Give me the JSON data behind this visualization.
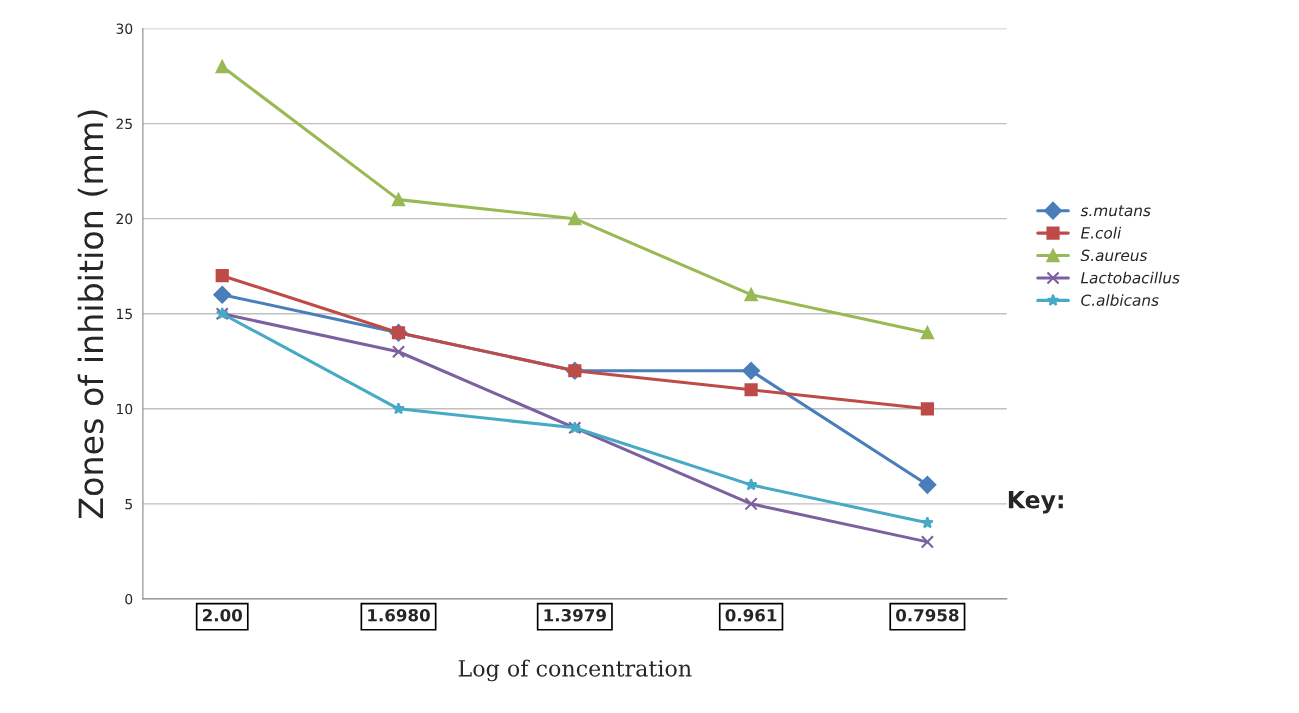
{
  "chart_data": {
    "type": "line",
    "xlabel": "Log of concentration",
    "ylabel": "Zones of inhibition (mm)",
    "categories": [
      "2.00",
      "1.6980",
      "1.3979",
      "0.961",
      "0.7958"
    ],
    "series": [
      {
        "name": "s.mutans",
        "color": "#4a7ebb",
        "marker": "diamond",
        "values": [
          16,
          14,
          12,
          12,
          6
        ]
      },
      {
        "name": "E.coli",
        "color": "#be4b48",
        "marker": "square",
        "values": [
          17,
          14,
          12,
          11,
          10
        ]
      },
      {
        "name": "S.aureus",
        "color": "#98b954",
        "marker": "triangle",
        "values": [
          28,
          21,
          20,
          16,
          14
        ]
      },
      {
        "name": "Lactobacillus",
        "color": "#7d60a0",
        "marker": "cross",
        "values": [
          15,
          13,
          9,
          5,
          3
        ]
      },
      {
        "name": "C.albicans",
        "color": "#46aac5",
        "marker": "star",
        "values": [
          15,
          10,
          9,
          6,
          4
        ]
      }
    ],
    "ylim": [
      0,
      30
    ],
    "yticks": [
      0,
      5,
      10,
      15,
      20,
      25,
      30
    ],
    "grid": "y",
    "legend": "right",
    "annotations": [
      "Key:"
    ]
  }
}
